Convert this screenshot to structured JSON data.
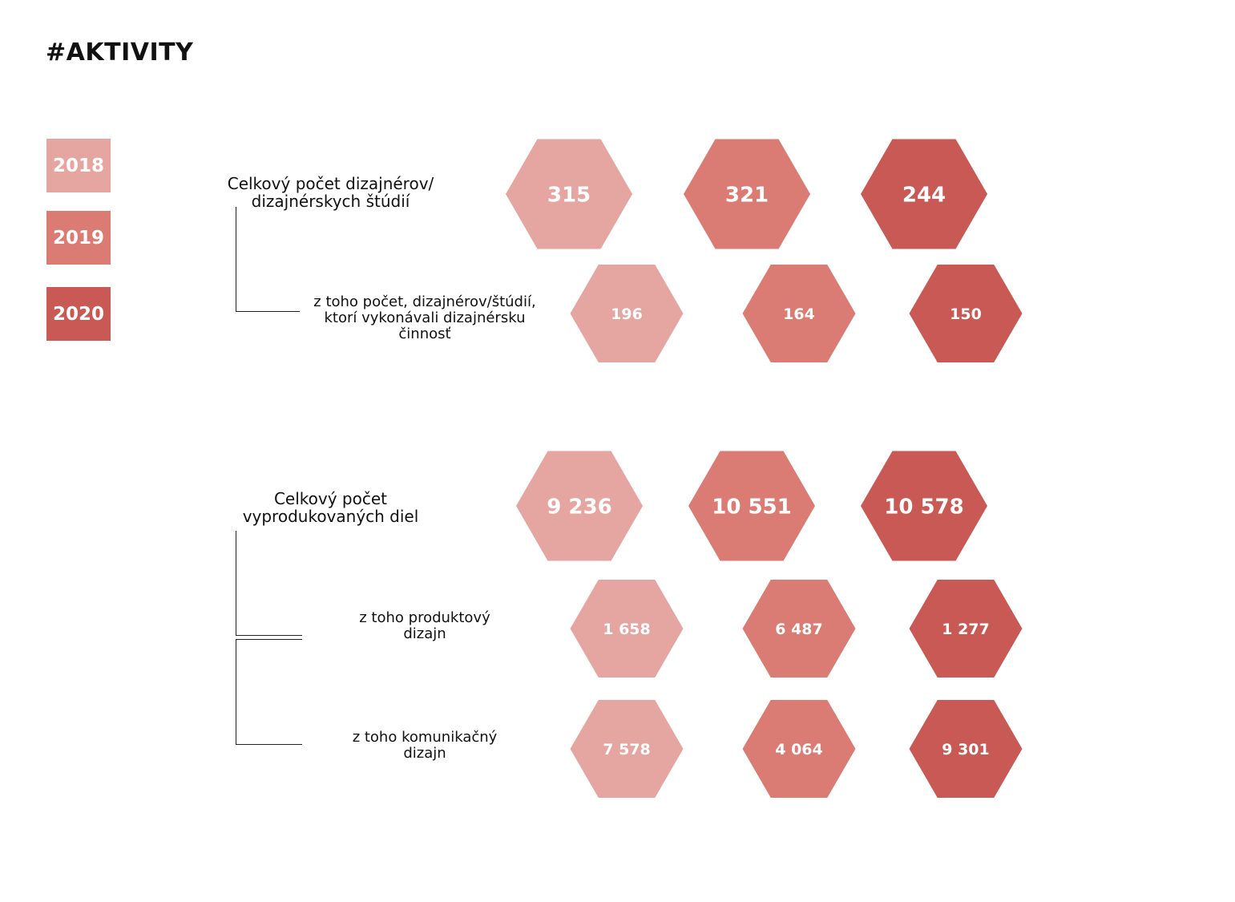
{
  "title": "#AKTIVITY",
  "legend": [
    {
      "year": "2018",
      "color": "#e5a5a1"
    },
    {
      "year": "2019",
      "color": "#db7c74"
    },
    {
      "year": "2020",
      "color": "#c95954"
    }
  ],
  "labels": {
    "total_designers": [
      "Celkový počet dizajnérov/",
      "dizajnérskych štúdií"
    ],
    "active_designers": [
      "z toho počet, dizajnérov/štúdií,",
      "ktorí vykonávali dizajnérsku",
      "činnosť"
    ],
    "total_works": [
      "Celkový počet",
      "vyprodukovaných diel"
    ],
    "product_design": [
      "z toho produktový",
      "dizajn"
    ],
    "communication_design": [
      "z toho komunikačný",
      "dizajn"
    ]
  },
  "chart_data": {
    "type": "table",
    "series": [
      {
        "name": "2018",
        "values": [
          315,
          196,
          9236,
          1658,
          7578
        ],
        "labels": [
          "315",
          "196",
          "9 236",
          "1 658",
          "7 578"
        ]
      },
      {
        "name": "2019",
        "values": [
          321,
          164,
          10551,
          6487,
          4064
        ],
        "labels": [
          "321",
          "164",
          "10 551",
          "6 487",
          "4 064"
        ]
      },
      {
        "name": "2020",
        "values": [
          244,
          150,
          10578,
          1277,
          9301
        ],
        "labels": [
          "244",
          "150",
          "10 578",
          "1 277",
          "9 301"
        ]
      }
    ]
  }
}
